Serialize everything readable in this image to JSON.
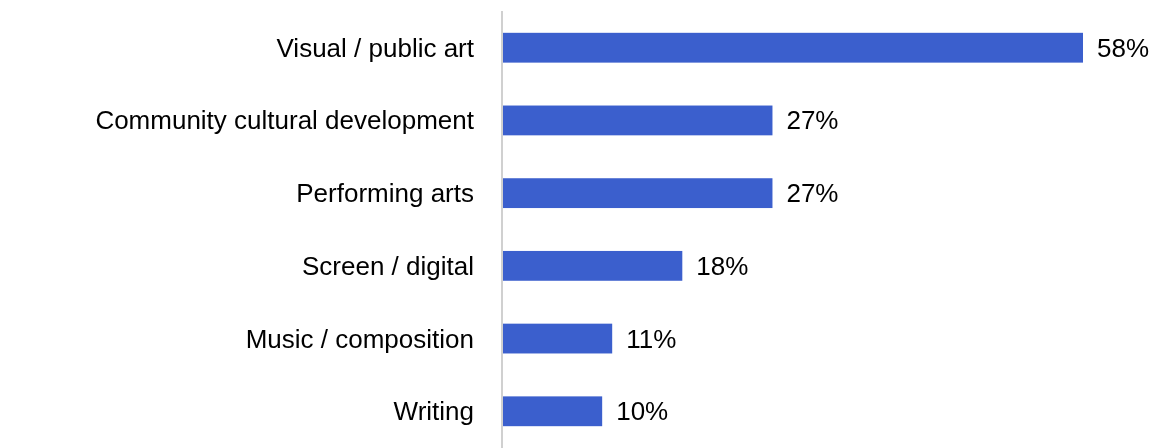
{
  "chart_data": {
    "type": "bar",
    "orientation": "horizontal",
    "categories": [
      "Visual / public art",
      "Community cultural development",
      "Performing arts",
      "Screen / digital",
      "Music / composition",
      "Writing"
    ],
    "values": [
      58,
      27,
      27,
      18,
      11,
      10
    ],
    "value_labels": [
      "58%",
      "27%",
      "27%",
      "18%",
      "11%",
      "10%"
    ],
    "color": "#3b5fcd"
  }
}
